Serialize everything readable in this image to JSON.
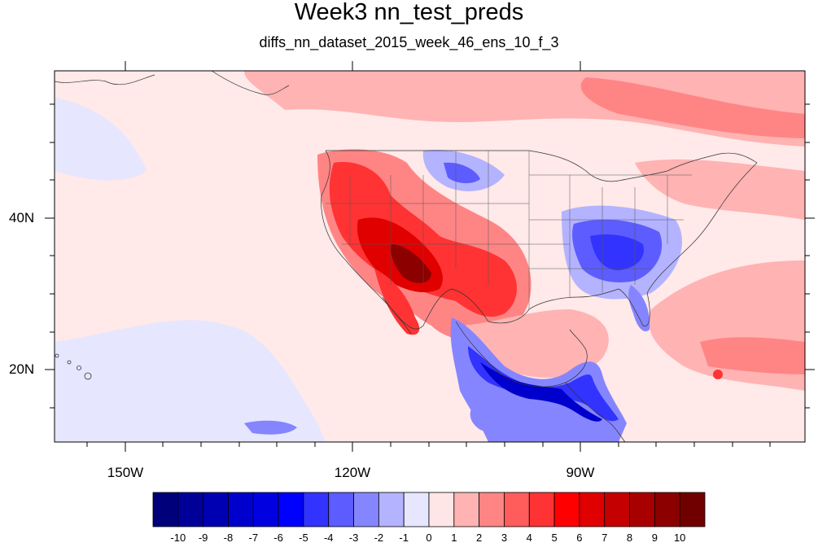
{
  "title": "Week3 nn_test_preds",
  "subtitle": "diffs_nn_dataset_2015_week_46_ens_10_f_3",
  "lat_labels": [
    "40N",
    "20N"
  ],
  "lon_labels": [
    "150W",
    "120W",
    "90W"
  ],
  "colorbar": {
    "labels": [
      "-10",
      "-9",
      "-8",
      "-7",
      "-6",
      "-5",
      "-4",
      "-3",
      "-2",
      "-1",
      "0",
      "1",
      "2",
      "3",
      "4",
      "5",
      "6",
      "7",
      "8",
      "9",
      "10"
    ],
    "colors": [
      "#00007a",
      "#000099",
      "#0000b3",
      "#0000cc",
      "#0000e0",
      "#0000ff",
      "#3333ff",
      "#5c5cff",
      "#8585ff",
      "#b3b3ff",
      "#e6e6ff",
      "#ffe6e6",
      "#ffb3b3",
      "#ff8585",
      "#ff5c5c",
      "#ff3333",
      "#ff0000",
      "#e00000",
      "#c40000",
      "#a80000",
      "#8c0000",
      "#700000"
    ]
  },
  "map_colors": {
    "ocean_base": "#ffe9e9",
    "light_blue": "#e6e6ff",
    "mid_blue": "#8585ff",
    "strong_blue": "#3333ff",
    "deep_blue": "#0000cc",
    "light_red": "#ffb3b3",
    "mid_red": "#ff8585",
    "strong_red": "#ff3333",
    "deep_red": "#c40000",
    "darkest_red": "#8c0000"
  }
}
